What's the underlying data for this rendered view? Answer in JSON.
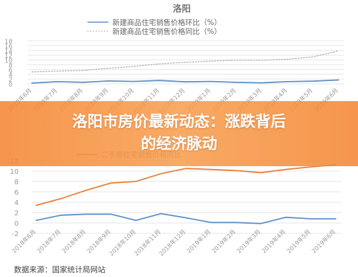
{
  "banner": {
    "line1": "洛阳市房价最新动态：涨跌背后",
    "line2": "的经济脉动"
  },
  "source": "数据来源：国家统计局网站",
  "chart_data": [
    {
      "type": "line",
      "title": "洛阳",
      "categories": [
        "2018年6月",
        "2018年7月",
        "2018年8月",
        "2018年9月",
        "2018年10月",
        "2018年11月",
        "2018年12月",
        "2019年1月",
        "2019年2月",
        "2019年3月",
        "2019年4月",
        "2019年5月",
        "2019年6月"
      ],
      "yticks": [
        "0",
        "2",
        "4",
        "6",
        "8",
        "10",
        "12",
        "14",
        "16",
        "18"
      ],
      "ylim": [
        0,
        18
      ],
      "series": [
        {
          "name": "新建商品住宅销售价格环比（%）",
          "style": "solid",
          "color": "#5b8fc7",
          "values": [
            0.3,
            0.9,
            0.6,
            1.2,
            1.0,
            1.4,
            0.8,
            1.0,
            0.6,
            0.4,
            0.9,
            1.1,
            1.6
          ]
        },
        {
          "name": "新建商品住宅销售价格同比（%）",
          "style": "dotted",
          "color": "#b3b3b3",
          "values": [
            5.0,
            5.3,
            5.6,
            6.5,
            7.3,
            8.4,
            9.0,
            9.5,
            9.9,
            9.9,
            10.3,
            11.3,
            13.8
          ]
        }
      ]
    },
    {
      "type": "line",
      "categories": [
        "2018年6月",
        "2018年7月",
        "2018年8月",
        "2018年9月",
        "2018年10月",
        "2018年11月",
        "2018年12月",
        "2019年1月",
        "2019年2月",
        "2019年3月",
        "2019年4月",
        "2019年5月",
        "2019年6月"
      ],
      "yticks": [
        "-2",
        "0",
        "2",
        "4",
        "6",
        "8",
        "10",
        "12"
      ],
      "ylim": [
        -2,
        12
      ],
      "series": [
        {
          "name": "二手房住宅销售价格同比",
          "style": "solid",
          "color": "#ed7d31",
          "values": [
            3.4,
            4.7,
            6.3,
            7.7,
            8.0,
            9.5,
            10.5,
            10.3,
            10.1,
            9.7,
            10.3,
            10.8,
            11.2
          ]
        },
        {
          "name": "",
          "style": "solid",
          "color": "#5b8fc7",
          "values": [
            0.5,
            1.5,
            1.7,
            1.7,
            0.5,
            1.8,
            1.0,
            0.1,
            0.1,
            -0.1,
            1.1,
            0.8,
            0.8
          ]
        }
      ]
    }
  ]
}
